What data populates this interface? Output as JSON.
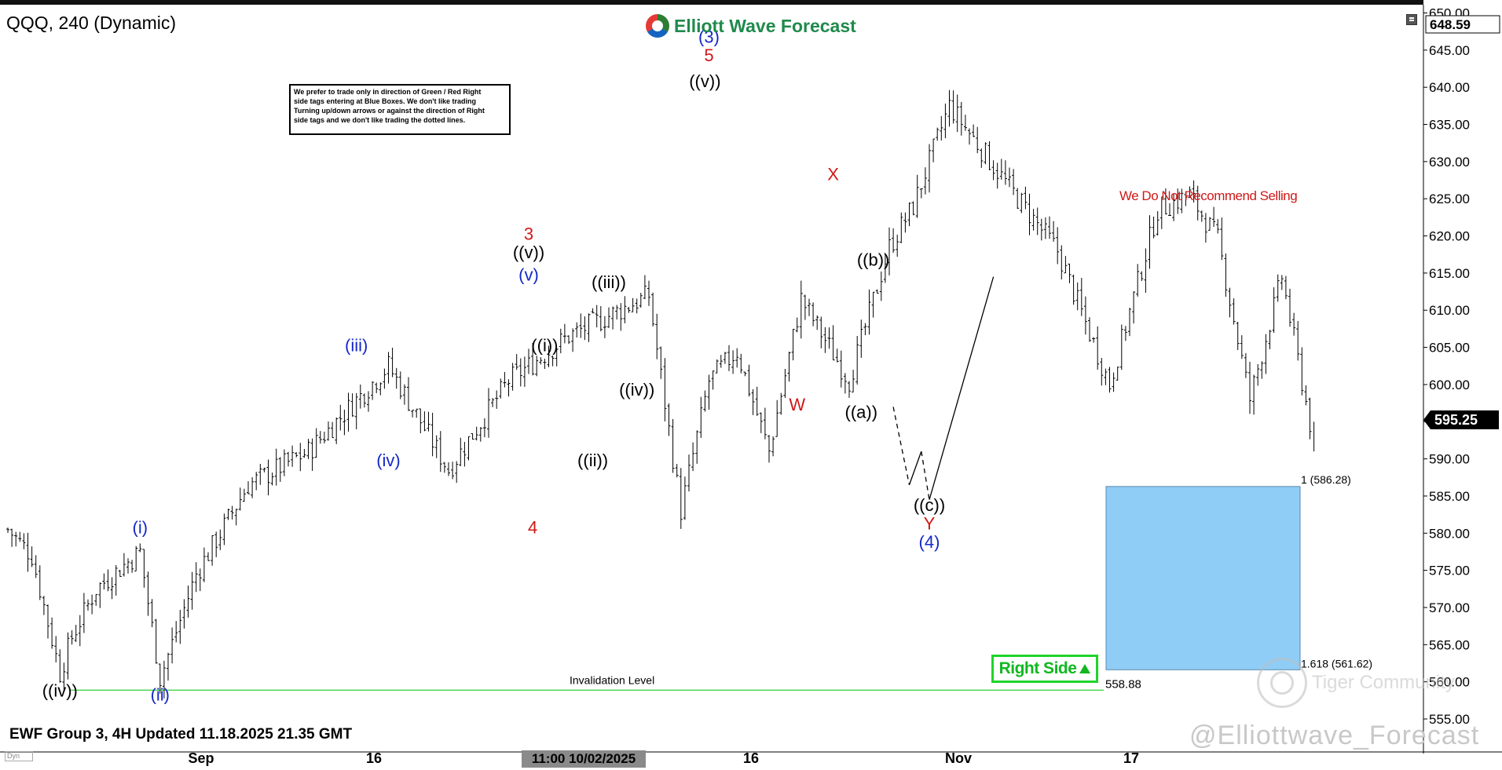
{
  "header": {
    "symbol_title": "QQQ, 240 (Dynamic)",
    "logo_text": "Elliott Wave Forecast",
    "note_lines": [
      "We prefer to trade only in direction of Green / Red Right",
      "side tags entering at Blue Boxes. We don't like trading",
      "Turning up/down arrows or against the direction of Right",
      "side tags and we don't like trading the dotted lines."
    ]
  },
  "footer": {
    "label": "EWF Group 3, 4H Updated 11.18.2025 21.35 GMT",
    "time_badge": "11:00 10/02/2025",
    "corner_icon_label": "Dyn"
  },
  "watermarks": {
    "community": "Tiger Community",
    "handle": "@Elliottwave_Forecast"
  },
  "right_side_tag": {
    "text": "Right Side",
    "icon": "up-arrow-icon",
    "color": "#10b820"
  },
  "icons": {
    "settings": "settings-icon"
  },
  "chart_data": {
    "type": "ohlc",
    "title": "QQQ, 240 (Dynamic)",
    "price_axis": {
      "ylim": [
        552.0,
        650.0
      ],
      "ticks": [
        555,
        560,
        565,
        570,
        575,
        580,
        585,
        590,
        595,
        600,
        605,
        610,
        615,
        620,
        625,
        630,
        635,
        640,
        645,
        650
      ],
      "tick_labels": [
        "555.00",
        "560.00",
        "565.00",
        "570.00",
        "575.00",
        "580.00",
        "585.00",
        "590.00",
        "595.00",
        "600.00",
        "605.00",
        "610.00",
        "615.00",
        "620.00",
        "625.00",
        "630.00",
        "635.00",
        "640.00",
        "645.00",
        "650.00"
      ],
      "current_price": 595.25,
      "current_price_label": "595.25",
      "high_marker": 648.59,
      "high_marker_label": "648.59"
    },
    "time_axis": {
      "tick_labels": [
        "Sep",
        "16",
        "16",
        "Nov",
        "17"
      ]
    },
    "ohlc_pivots": [
      {
        "bar": 0,
        "price": 580.5
      },
      {
        "bar": 6,
        "price": 577.0
      },
      {
        "bar": 13,
        "price": 561.2
      },
      {
        "bar": 16,
        "price": 566.0
      },
      {
        "bar": 22,
        "price": 572.5
      },
      {
        "bar": 33,
        "price": 577.5
      },
      {
        "bar": 38,
        "price": 560.5
      },
      {
        "bar": 47,
        "price": 574.5
      },
      {
        "bar": 60,
        "price": 586.5
      },
      {
        "bar": 75,
        "price": 591.0
      },
      {
        "bar": 95,
        "price": 602.5
      },
      {
        "bar": 110,
        "price": 588.5
      },
      {
        "bar": 125,
        "price": 600.5
      },
      {
        "bar": 140,
        "price": 606.5
      },
      {
        "bar": 160,
        "price": 612.0
      },
      {
        "bar": 168,
        "price": 583.0
      },
      {
        "bar": 175,
        "price": 600.5
      },
      {
        "bar": 182,
        "price": 604.5
      },
      {
        "bar": 190,
        "price": 591.0
      },
      {
        "bar": 198,
        "price": 611.5
      },
      {
        "bar": 210,
        "price": 600.5
      },
      {
        "bar": 220,
        "price": 618.5
      },
      {
        "bar": 226,
        "price": 624.0
      },
      {
        "bar": 235,
        "price": 637.5
      },
      {
        "bar": 250,
        "price": 626.5
      },
      {
        "bar": 262,
        "price": 618.0
      },
      {
        "bar": 275,
        "price": 600.0
      },
      {
        "bar": 287,
        "price": 623.5
      },
      {
        "bar": 295,
        "price": 625.5
      },
      {
        "bar": 302,
        "price": 619.5
      },
      {
        "bar": 310,
        "price": 598.0
      },
      {
        "bar": 318,
        "price": 614.5
      },
      {
        "bar": 326,
        "price": 592.0
      }
    ],
    "wave_labels": [
      {
        "text": "((iv))",
        "bar": 13,
        "price": 558.0,
        "color": "#000000"
      },
      {
        "text": "(i)",
        "bar": 33,
        "price": 580.0,
        "color": "#1428c8"
      },
      {
        "text": "(ii)",
        "bar": 38,
        "price": 557.5,
        "color": "#1428c8"
      },
      {
        "text": "(iii)",
        "bar": 87,
        "price": 604.5,
        "color": "#1428c8"
      },
      {
        "text": "(iv)",
        "bar": 95,
        "price": 589.0,
        "color": "#1428c8"
      },
      {
        "text": "(v)",
        "bar": 130,
        "price": 614.0,
        "color": "#1428c8"
      },
      {
        "text": "((v))",
        "bar": 130,
        "price": 617.0,
        "color": "#000000"
      },
      {
        "text": "3",
        "bar": 130,
        "price": 619.5,
        "color": "#d01818"
      },
      {
        "text": "((i))",
        "bar": 134,
        "price": 604.5,
        "color": "#000000"
      },
      {
        "text": "4",
        "bar": 131,
        "price": 580.0,
        "color": "#d01818"
      },
      {
        "text": "((iii))",
        "bar": 150,
        "price": 613.0,
        "color": "#000000"
      },
      {
        "text": "((ii))",
        "bar": 146,
        "price": 589.0,
        "color": "#000000"
      },
      {
        "text": "((iv))",
        "bar": 157,
        "price": 598.5,
        "color": "#000000"
      },
      {
        "text": "((v))",
        "bar": 174,
        "price": 640.0,
        "color": "#000000"
      },
      {
        "text": "5",
        "bar": 175,
        "price": 643.5,
        "color": "#d01818"
      },
      {
        "text": "(3)",
        "bar": 175,
        "price": 646.0,
        "color": "#1428c8"
      },
      {
        "text": "W",
        "bar": 197,
        "price": 596.5,
        "color": "#d01818"
      },
      {
        "text": "X",
        "bar": 206,
        "price": 627.5,
        "color": "#d01818"
      },
      {
        "text": "((a))",
        "bar": 213,
        "price": 595.5,
        "color": "#000000"
      },
      {
        "text": "((b))",
        "bar": 216,
        "price": 616.0,
        "color": "#000000"
      },
      {
        "text": "((c))",
        "bar": 230,
        "price": 583.0,
        "color": "#000000"
      },
      {
        "text": "Y",
        "bar": 230,
        "price": 580.5,
        "color": "#d01818"
      },
      {
        "text": "(4)",
        "bar": 230,
        "price": 578.0,
        "color": "#1428c8"
      }
    ],
    "blue_box": {
      "top_price": 586.28,
      "bottom_price": 561.62,
      "top_label": "1 (586.28)",
      "bottom_label": "1.618 (561.62)",
      "color": "#7cc4f4"
    },
    "invalidation": {
      "price": 558.88,
      "label": "Invalidation Level",
      "value_label": "558.88",
      "color": "#2fcf35"
    },
    "annotations": [
      {
        "text": "We Do Not Recommend Selling",
        "color": "#d01818"
      }
    ],
    "projection_path": [
      {
        "bar": 221,
        "price": 597.0
      },
      {
        "bar": 225,
        "price": 586.5
      },
      {
        "bar": 228,
        "price": 591.0
      },
      {
        "bar": 230,
        "price": 584.5
      },
      {
        "bar": 246,
        "price": 614.5
      }
    ]
  }
}
